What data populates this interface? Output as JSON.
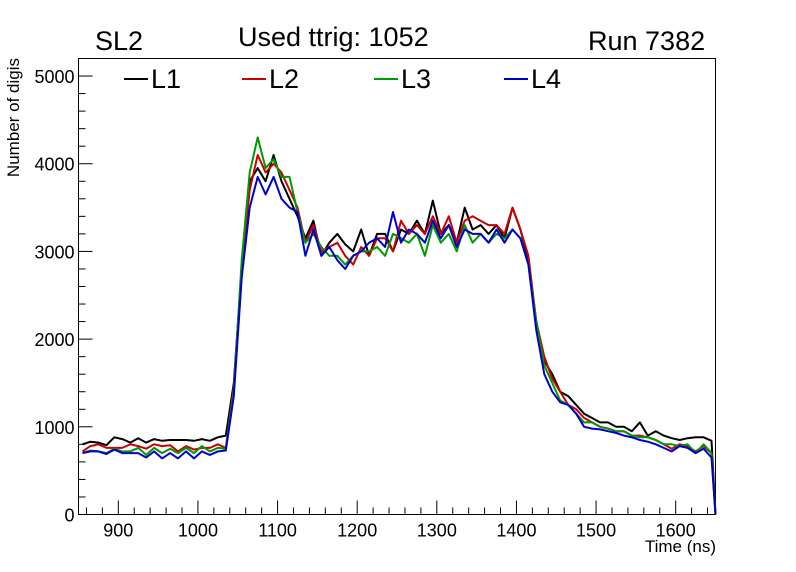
{
  "header": {
    "superlayer": "SL2",
    "title": "Used ttrig: 1052",
    "run": "Run 7382"
  },
  "colors": {
    "L1": "#000000",
    "L2": "#cc0000",
    "L3": "#009900",
    "L4": "#0000cc"
  },
  "chart_data": {
    "type": "line",
    "title": "Used ttrig: 1052",
    "xlabel": "Time (ns)",
    "ylabel": "Number of digis",
    "xlim": [
      850,
      1650
    ],
    "ylim": [
      0,
      5200
    ],
    "x_ticks": [
      900,
      1000,
      1100,
      1200,
      1300,
      1400,
      1500,
      1600
    ],
    "y_ticks": [
      0,
      1000,
      2000,
      3000,
      4000,
      5000
    ],
    "legend_position": "top",
    "grid": false,
    "x": [
      855,
      865,
      875,
      885,
      895,
      905,
      915,
      925,
      935,
      945,
      955,
      965,
      975,
      985,
      995,
      1005,
      1015,
      1025,
      1035,
      1045,
      1055,
      1065,
      1075,
      1085,
      1095,
      1105,
      1115,
      1125,
      1135,
      1145,
      1155,
      1165,
      1175,
      1185,
      1195,
      1205,
      1215,
      1225,
      1235,
      1245,
      1255,
      1265,
      1275,
      1285,
      1295,
      1305,
      1315,
      1325,
      1335,
      1345,
      1355,
      1365,
      1375,
      1385,
      1395,
      1405,
      1415,
      1425,
      1435,
      1445,
      1455,
      1465,
      1475,
      1485,
      1495,
      1505,
      1515,
      1525,
      1535,
      1545,
      1555,
      1565,
      1575,
      1585,
      1595,
      1605,
      1615,
      1625,
      1635,
      1645,
      1650
    ],
    "series": [
      {
        "name": "L1",
        "color": "#000000",
        "values": [
          800,
          830,
          820,
          790,
          880,
          860,
          820,
          870,
          820,
          860,
          840,
          850,
          850,
          850,
          840,
          860,
          840,
          880,
          900,
          1500,
          2800,
          3800,
          3950,
          3800,
          4100,
          3800,
          3600,
          3400,
          3150,
          3350,
          2950,
          3100,
          3200,
          3080,
          3000,
          3250,
          2950,
          3200,
          3200,
          3000,
          3250,
          3200,
          3350,
          3200,
          3580,
          3200,
          3300,
          3100,
          3500,
          3250,
          3300,
          3200,
          3300,
          3150,
          3500,
          3250,
          2900,
          2200,
          1750,
          1600,
          1400,
          1350,
          1250,
          1150,
          1100,
          1050,
          1050,
          1000,
          1000,
          950,
          1050,
          900,
          950,
          900,
          870,
          850,
          870,
          880,
          880,
          840,
          0
        ]
      },
      {
        "name": "L2",
        "color": "#cc0000",
        "values": [
          720,
          780,
          800,
          760,
          760,
          760,
          800,
          780,
          750,
          800,
          780,
          790,
          720,
          780,
          740,
          760,
          760,
          800,
          760,
          1450,
          2800,
          3700,
          4100,
          3900,
          4000,
          3900,
          3700,
          3500,
          3100,
          3300,
          3000,
          3050,
          3100,
          2950,
          2850,
          3050,
          2950,
          3150,
          3150,
          3000,
          3350,
          3200,
          3300,
          3200,
          3400,
          3200,
          3400,
          3100,
          3350,
          3400,
          3350,
          3300,
          3300,
          3200,
          3500,
          3250,
          2950,
          2200,
          1800,
          1550,
          1400,
          1250,
          1200,
          1100,
          1050,
          1000,
          980,
          950,
          950,
          900,
          900,
          880,
          850,
          800,
          750,
          800,
          780,
          720,
          780,
          700,
          0
        ]
      },
      {
        "name": "L3",
        "color": "#009900",
        "values": [
          700,
          730,
          720,
          700,
          750,
          720,
          720,
          760,
          680,
          760,
          700,
          750,
          700,
          760,
          700,
          780,
          720,
          760,
          750,
          1400,
          2900,
          3900,
          4300,
          3950,
          4050,
          3850,
          3850,
          3450,
          3100,
          3200,
          3050,
          2950,
          2950,
          2850,
          2950,
          3000,
          3000,
          3050,
          2950,
          3200,
          3150,
          3100,
          3200,
          2950,
          3300,
          3100,
          3200,
          3000,
          3300,
          3100,
          3200,
          3100,
          3200,
          3150,
          3250,
          3150,
          2850,
          2200,
          1700,
          1500,
          1300,
          1250,
          1150,
          1050,
          1050,
          1000,
          980,
          950,
          950,
          900,
          880,
          880,
          850,
          800,
          800,
          780,
          800,
          700,
          800,
          700,
          0
        ]
      },
      {
        "name": "L4",
        "color": "#0000cc",
        "values": [
          700,
          720,
          720,
          690,
          740,
          700,
          700,
          700,
          650,
          720,
          640,
          700,
          640,
          720,
          640,
          720,
          680,
          720,
          730,
          1350,
          2700,
          3500,
          3850,
          3650,
          3850,
          3600,
          3500,
          3450,
          2950,
          3250,
          2950,
          3050,
          2900,
          2800,
          2950,
          3000,
          3100,
          3150,
          3050,
          3450,
          3100,
          3250,
          3200,
          3100,
          3350,
          3150,
          3300,
          3050,
          3250,
          3200,
          3200,
          3100,
          3250,
          3100,
          3250,
          3150,
          2850,
          2100,
          1600,
          1400,
          1280,
          1250,
          1150,
          1000,
          980,
          970,
          950,
          930,
          900,
          880,
          850,
          830,
          800,
          760,
          720,
          780,
          760,
          700,
          750,
          650,
          0
        ]
      }
    ]
  }
}
